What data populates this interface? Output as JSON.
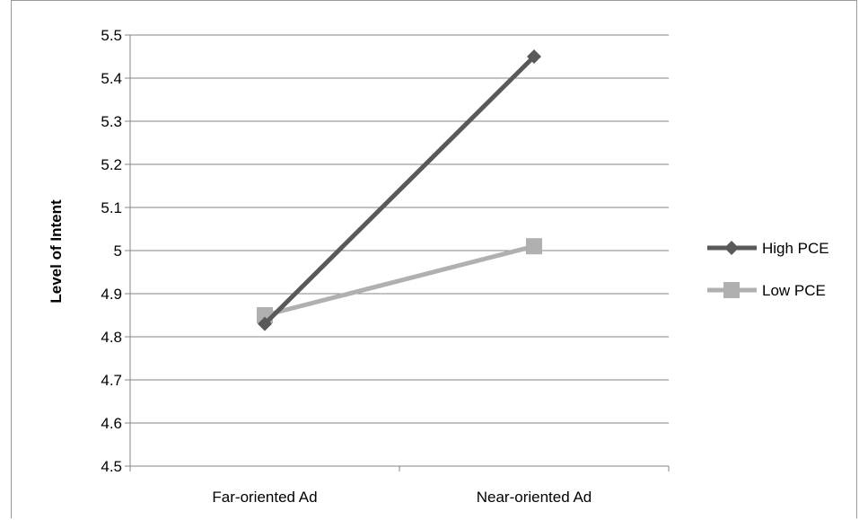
{
  "chart_data": {
    "type": "line",
    "title": "",
    "xlabel": "",
    "ylabel": "Level of Intent",
    "categories": [
      "Far-oriented Ad",
      "Near-oriented Ad"
    ],
    "ylim": [
      4.5,
      5.5
    ],
    "yticks": [
      4.5,
      4.6,
      4.7,
      4.8,
      4.9,
      5,
      5.1,
      5.2,
      5.3,
      5.4,
      5.5
    ],
    "grid": true,
    "legend_position": "right",
    "series": [
      {
        "name": "High PCE",
        "values": [
          4.83,
          5.45
        ],
        "color": "#595959",
        "marker": "diamond"
      },
      {
        "name": "Low PCE",
        "values": [
          4.85,
          5.01
        ],
        "color": "#b0b0b0",
        "marker": "square"
      }
    ]
  }
}
